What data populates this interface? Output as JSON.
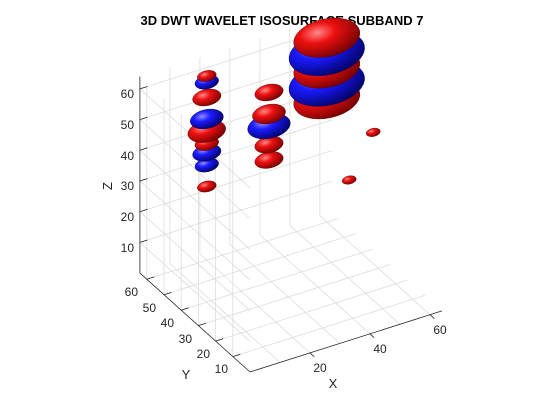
{
  "chart_data": {
    "type": "isosurface",
    "title": "3D DWT WAVELET ISOSURFACE SUBBAND 7",
    "xlabel": "X",
    "ylabel": "Y",
    "zlabel": "Z",
    "xlim": [
      0,
      64
    ],
    "ylim": [
      0,
      64
    ],
    "zlim": [
      0,
      64
    ],
    "x_ticks": [
      "20",
      "40",
      "60"
    ],
    "y_ticks": [
      "10",
      "20",
      "30",
      "40",
      "50",
      "60"
    ],
    "z_ticks": [
      "10",
      "20",
      "30",
      "40",
      "50",
      "60"
    ],
    "grid": true,
    "colors": {
      "positive": "#d0021b",
      "negative": "#1410c8"
    },
    "series": [
      {
        "values": [
          {
            "x": 20,
            "y": 60,
            "z": 60,
            "size": 4,
            "sign": "positive"
          },
          {
            "x": 20,
            "y": 60,
            "z": 58,
            "size": 5,
            "sign": "negative"
          },
          {
            "x": 20,
            "y": 60,
            "z": 53,
            "size": 6,
            "sign": "positive"
          },
          {
            "x": 20,
            "y": 60,
            "z": 46,
            "size": 7,
            "sign": "negative"
          },
          {
            "x": 20,
            "y": 60,
            "z": 42,
            "size": 8,
            "sign": "positive"
          },
          {
            "x": 20,
            "y": 60,
            "z": 38,
            "size": 5,
            "sign": "positive"
          },
          {
            "x": 20,
            "y": 60,
            "z": 35,
            "size": 6,
            "sign": "negative"
          },
          {
            "x": 20,
            "y": 60,
            "z": 31,
            "size": 5,
            "sign": "negative"
          },
          {
            "x": 20,
            "y": 60,
            "z": 24,
            "size": 4,
            "sign": "positive"
          },
          {
            "x": 35,
            "y": 50,
            "z": 55,
            "size": 6,
            "sign": "positive"
          },
          {
            "x": 35,
            "y": 50,
            "z": 48,
            "size": 7,
            "sign": "positive"
          },
          {
            "x": 35,
            "y": 50,
            "z": 44,
            "size": 9,
            "sign": "negative"
          },
          {
            "x": 35,
            "y": 50,
            "z": 38,
            "size": 6,
            "sign": "positive"
          },
          {
            "x": 35,
            "y": 50,
            "z": 33,
            "size": 6,
            "sign": "positive"
          },
          {
            "x": 60,
            "y": 60,
            "z": 60,
            "size": 14,
            "sign": "positive"
          },
          {
            "x": 60,
            "y": 60,
            "z": 55,
            "size": 16,
            "sign": "negative"
          },
          {
            "x": 60,
            "y": 60,
            "z": 50,
            "size": 14,
            "sign": "positive"
          },
          {
            "x": 60,
            "y": 60,
            "z": 45,
            "size": 16,
            "sign": "negative"
          },
          {
            "x": 60,
            "y": 60,
            "z": 40,
            "size": 14,
            "sign": "positive"
          },
          {
            "x": 64,
            "y": 40,
            "z": 38,
            "size": 3,
            "sign": "positive"
          },
          {
            "x": 56,
            "y": 40,
            "z": 25,
            "size": 3,
            "sign": "positive"
          }
        ]
      }
    ]
  }
}
